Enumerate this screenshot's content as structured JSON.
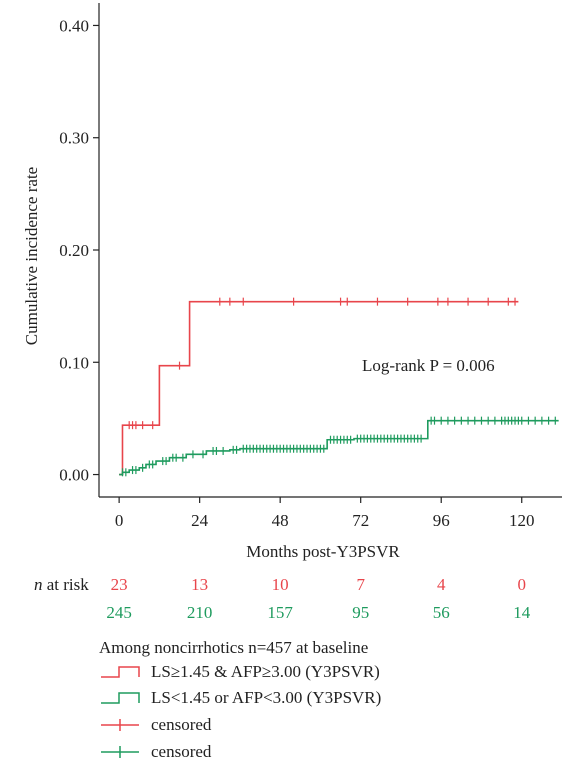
{
  "chart_data": {
    "type": "line",
    "ylabel": "Cumulative incidence rate",
    "xlabel": "Months post-Y3PSVR",
    "xlim": [
      -6,
      132
    ],
    "ylim": [
      -0.02,
      0.42
    ],
    "xticks": [
      0,
      24,
      48,
      72,
      96,
      120
    ],
    "xtick_labels": [
      "0",
      "24",
      "48",
      "72",
      "96",
      "120"
    ],
    "yticks": [
      0.0,
      0.1,
      0.2,
      0.3,
      0.4
    ],
    "ytick_labels": [
      "0.00",
      "0.10",
      "0.20",
      "0.30",
      "0.40"
    ],
    "annotation": "Log-rank P = 0.006",
    "grid": false,
    "series": [
      {
        "name": "LS≥1.45 & AFP≥3.00 (Y3PSVR)",
        "color": "#e8454b",
        "step_x": [
          0,
          1,
          12,
          21,
          119
        ],
        "step_y": [
          0.0,
          0.044,
          0.097,
          0.154,
          0.154
        ],
        "censored_x": [
          3,
          4,
          5,
          7,
          10,
          18,
          30,
          33,
          37,
          52,
          66,
          68,
          77,
          86,
          95,
          98,
          104,
          110,
          116,
          118
        ],
        "at_risk": [
          "23",
          "13",
          "10",
          "7",
          "4",
          "0"
        ]
      },
      {
        "name": "LS<1.45 or AFP<3.00 (Y3PSVR)",
        "color": "#1e9b5e",
        "step_x": [
          0,
          1,
          3,
          6,
          8,
          11,
          15,
          20,
          26,
          33,
          36,
          62,
          70,
          92,
          131
        ],
        "step_y": [
          0.0,
          0.002,
          0.004,
          0.006,
          0.009,
          0.012,
          0.015,
          0.018,
          0.021,
          0.022,
          0.023,
          0.031,
          0.032,
          0.048,
          0.048
        ],
        "censored_x": [
          1,
          2,
          4,
          5,
          7,
          9,
          10,
          13,
          14,
          16,
          17,
          19,
          22,
          25,
          28,
          29,
          31,
          34,
          35,
          37,
          38,
          39,
          40,
          41,
          42,
          43,
          44,
          45,
          46,
          47,
          48,
          49,
          50,
          51,
          52,
          53,
          54,
          55,
          56,
          57,
          58,
          59,
          60,
          61,
          63,
          64,
          65,
          66,
          67,
          68,
          69,
          71,
          72,
          73,
          74,
          75,
          76,
          77,
          78,
          79,
          80,
          81,
          82,
          83,
          84,
          85,
          86,
          87,
          88,
          89,
          90,
          93,
          94,
          96,
          98,
          100,
          102,
          104,
          106,
          108,
          110,
          112,
          114,
          115,
          116,
          117,
          118,
          119,
          120,
          122,
          124,
          126,
          128,
          130
        ],
        "at_risk": [
          "245",
          "210",
          "157",
          "95",
          "56",
          "14"
        ]
      }
    ]
  },
  "risk_table": {
    "label_italic": "n",
    "label_rest": " at risk"
  },
  "legend": {
    "title": "Among noncirrhotics n=457 at baseline",
    "items": [
      {
        "label": "LS≥1.45 & AFP≥3.00 (Y3PSVR)",
        "color": "#e8454b",
        "kind": "step"
      },
      {
        "label": "LS<1.45 or AFP<3.00 (Y3PSVR)",
        "color": "#1e9b5e",
        "kind": "step"
      },
      {
        "label": "censored",
        "color": "#e8454b",
        "kind": "censor"
      },
      {
        "label": "censored",
        "color": "#1e9b5e",
        "kind": "censor"
      }
    ]
  }
}
